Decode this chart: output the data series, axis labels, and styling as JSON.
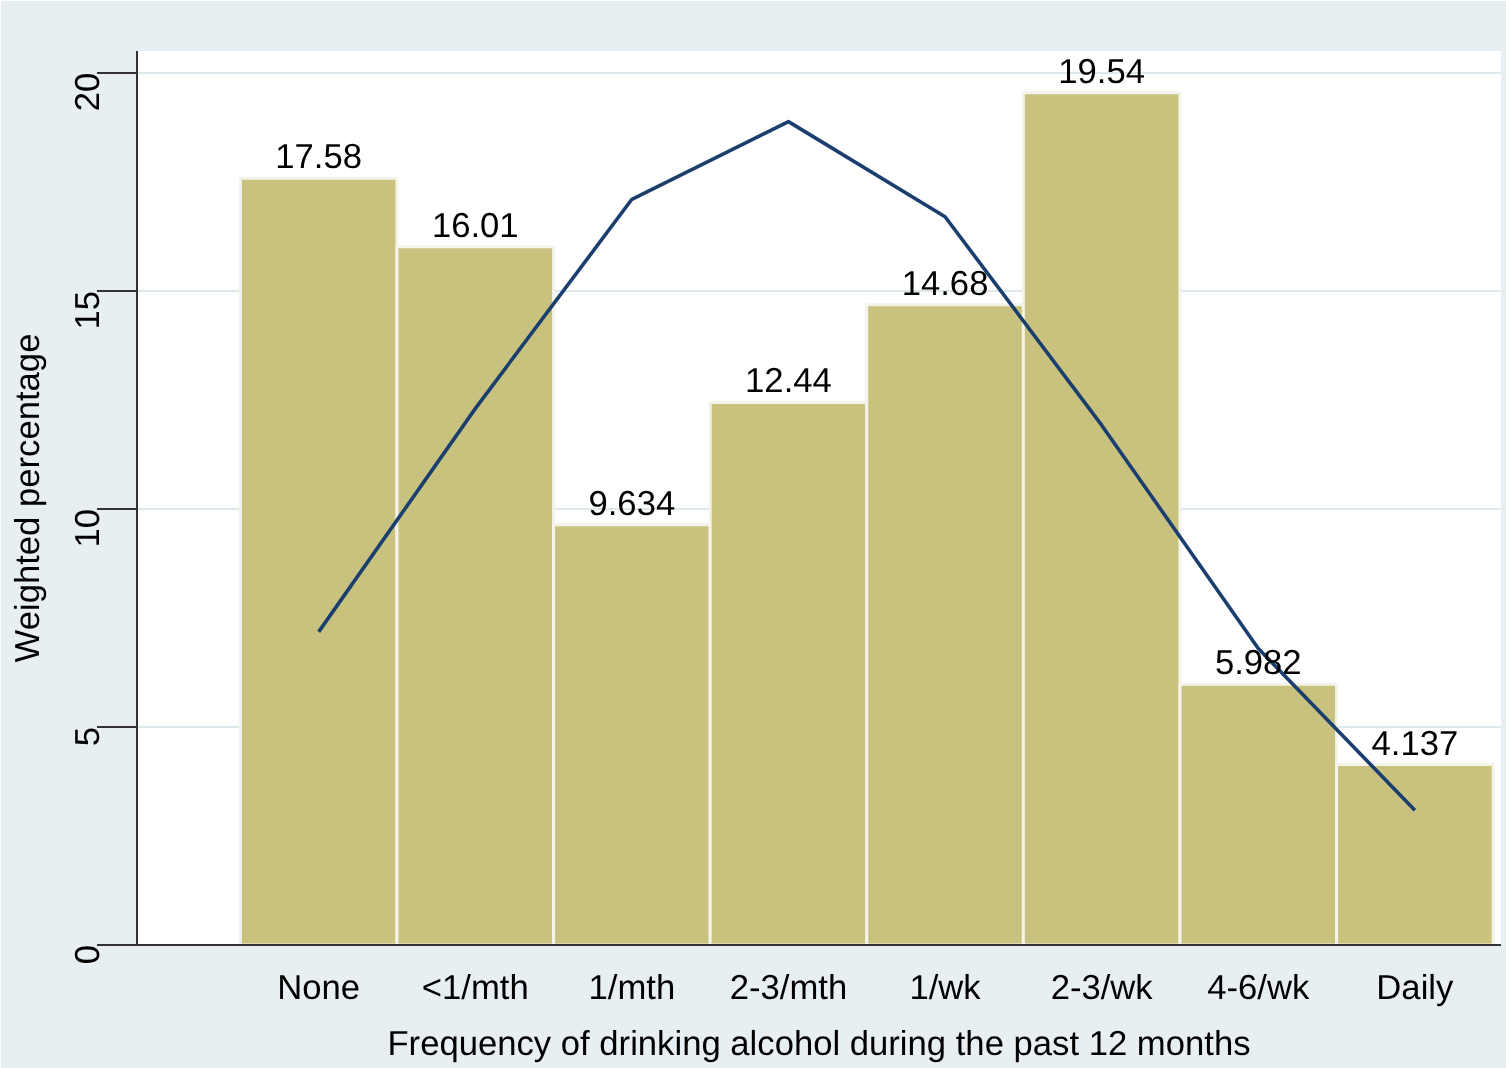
{
  "chart_data": {
    "type": "bar",
    "xlabel": "Frequency of drinking alcohol during the past 12 months",
    "ylabel": "Weighted percentage",
    "categories": [
      "None",
      "<1/mth",
      "1/mth",
      "2-3/mth",
      "1/wk",
      "2-3/wk",
      "4-6/wk",
      "Daily"
    ],
    "series": [
      {
        "color": "#c9c27f",
        "values": [
          17.58,
          16.01,
          9.634,
          12.44,
          14.68,
          19.54,
          5.982,
          4.137
        ],
        "value_labels": [
          "17.58",
          "16.01",
          "9.634",
          "12.44",
          "14.68",
          "19.54",
          "5.982",
          "4.137"
        ]
      },
      {
        "type": "line",
        "color": "#1a3e6e",
        "values": [
          7.18,
          12.3,
          17.1,
          18.88,
          16.7,
          11.92,
          6.8,
          3.09
        ]
      }
    ],
    "ylim": [
      0,
      20.5
    ],
    "yticks": [
      0,
      5,
      10,
      15,
      20
    ],
    "grid": "y",
    "marker": "none",
    "line_style": "solid"
  }
}
